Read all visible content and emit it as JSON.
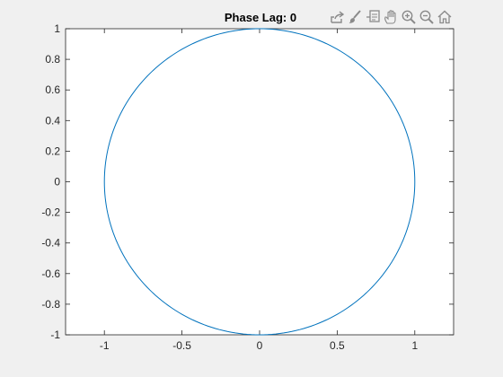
{
  "window": {
    "background": "#f0f0f0"
  },
  "toolbar": {
    "items": [
      {
        "name": "export-icon"
      },
      {
        "name": "brush-icon"
      },
      {
        "name": "data-tips-icon"
      },
      {
        "name": "pan-icon"
      },
      {
        "name": "zoom-in-icon"
      },
      {
        "name": "zoom-out-icon"
      },
      {
        "name": "home-icon"
      }
    ]
  },
  "chart_data": {
    "type": "line",
    "title": "Phase Lag: 0",
    "xlabel": "",
    "ylabel": "",
    "xlim": [
      -1.25,
      1.25
    ],
    "ylim": [
      -1,
      1
    ],
    "xticks": [
      -1,
      -0.5,
      0,
      0.5,
      1
    ],
    "xtick_labels": [
      "-1",
      "-0.5",
      "0",
      "0.5",
      "1"
    ],
    "yticks": [
      -1,
      -0.8,
      -0.6,
      -0.4,
      -0.2,
      0,
      0.2,
      0.4,
      0.6,
      0.8,
      1
    ],
    "ytick_labels": [
      "-1",
      "-0.8",
      "-0.6",
      "-0.4",
      "-0.2",
      "0",
      "0.2",
      "0.4",
      "0.6",
      "0.8",
      "1"
    ],
    "grid": false,
    "series": [
      {
        "curve": "x = cos(t), y = sin(t), t from 0 to 2π (unit circle)",
        "color": "#0072bd"
      }
    ],
    "axes_color": "#262626",
    "plot_background": "#ffffff"
  }
}
